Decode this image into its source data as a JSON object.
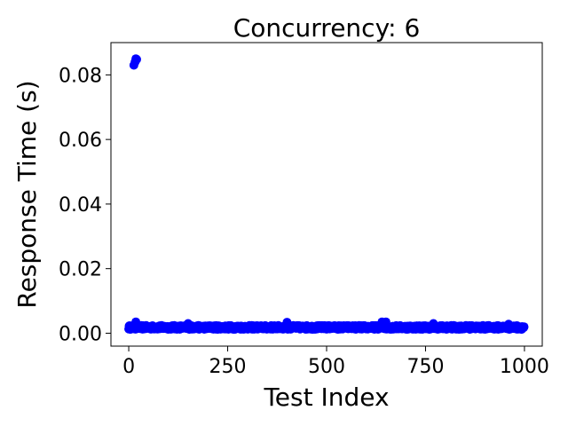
{
  "chart_data": {
    "type": "scatter",
    "title": "Concurrency: 6",
    "xlabel": "Test Index",
    "ylabel": "Response Time (s)",
    "xlim": [
      -45,
      1045
    ],
    "ylim": [
      -0.004,
      0.09
    ],
    "xticks": [
      0,
      250,
      500,
      750,
      1000
    ],
    "xtick_labels": [
      "0",
      "250",
      "500",
      "750",
      "1000"
    ],
    "yticks": [
      0.0,
      0.02,
      0.04,
      0.06,
      0.08
    ],
    "ytick_labels": [
      "0.00",
      "0.02",
      "0.04",
      "0.06",
      "0.08"
    ],
    "grid": false,
    "legend": "none",
    "marker_color": "#0000ff",
    "series": [
      {
        "outliers": [
          [
            13,
            0.083
          ],
          [
            16,
            0.084
          ],
          [
            18,
            0.085
          ],
          [
            20,
            0.0848
          ]
        ],
        "baseline_points_count": 1000,
        "baseline_typical": 0.0018,
        "baseline_range": [
          0.0008,
          0.0035
        ],
        "spikes": [
          [
            18,
            0.0035
          ],
          [
            150,
            0.003
          ],
          [
            400,
            0.0034
          ],
          [
            640,
            0.0035
          ],
          [
            650,
            0.0035
          ],
          [
            770,
            0.003
          ],
          [
            960,
            0.0028
          ]
        ]
      }
    ]
  }
}
